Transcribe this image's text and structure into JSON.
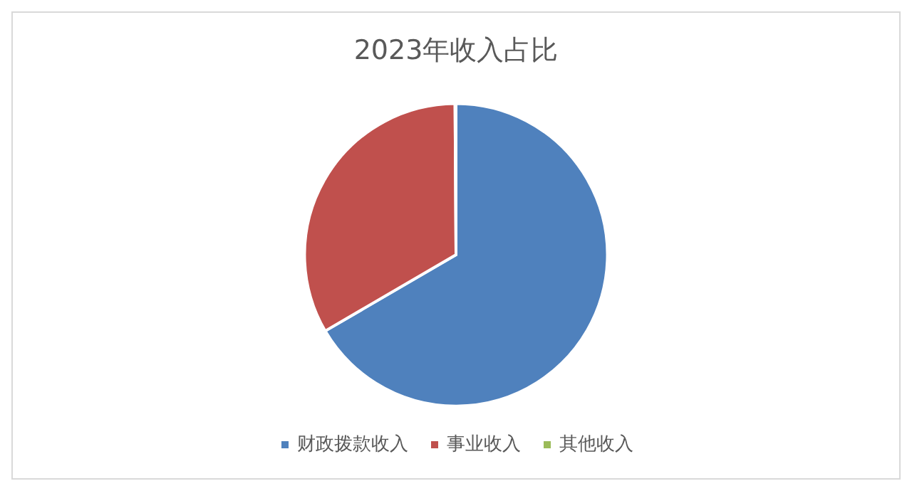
{
  "chart_data": {
    "type": "pie",
    "title": "2023年收入占比",
    "categories": [
      "财政拨款收入",
      "事业收入",
      "其他收入"
    ],
    "values": [
      66.6,
      33.3,
      0.1
    ],
    "colors": [
      "#4f81bd",
      "#c0504d",
      "#9bbb59"
    ],
    "legend": "bottom"
  }
}
